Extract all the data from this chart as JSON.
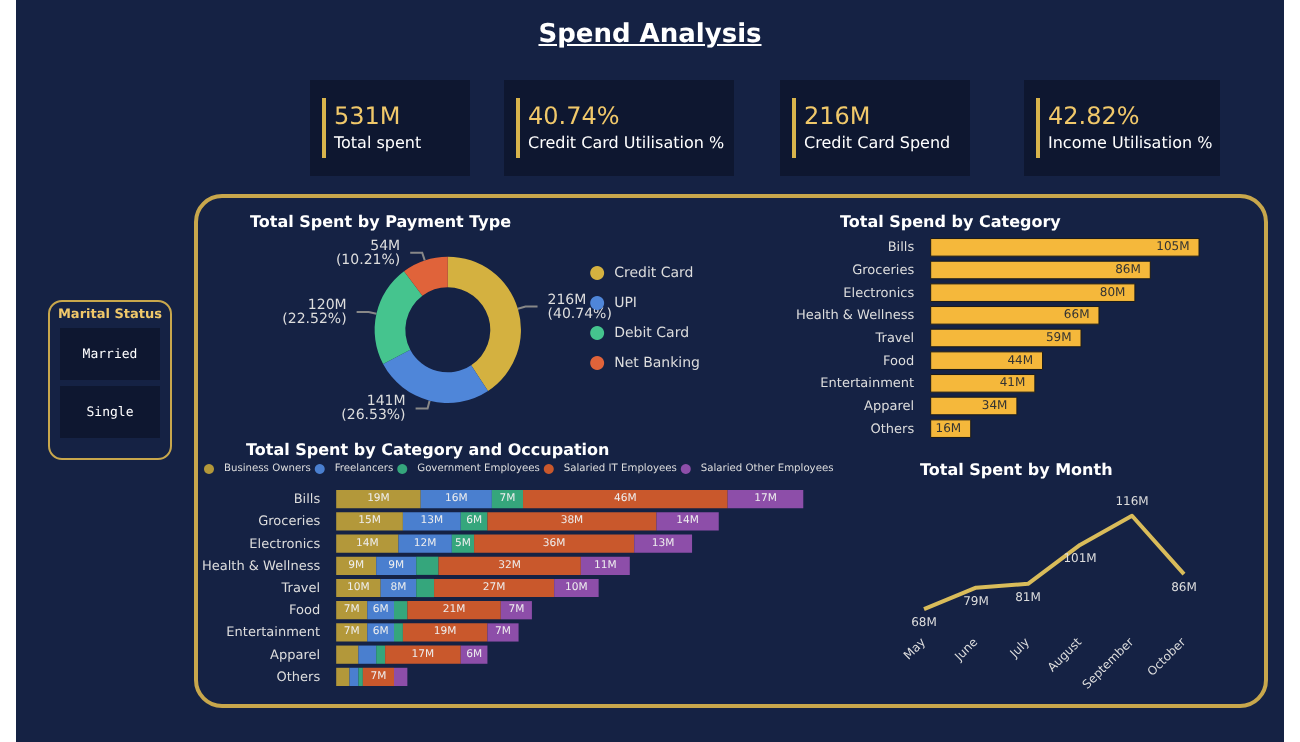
{
  "chart_data": [
    {
      "type": "other",
      "title": "Spend Analysis",
      "annotations": [
        "531M",
        "Total spent",
        "40.74%",
        "Credit Card Utilisation %",
        "216M",
        "Credit Card Spend",
        "42.82%",
        "Income Utilisation %"
      ]
    },
    {
      "type": "other",
      "title": "Marital Status",
      "annotations": [
        "Married",
        "Single"
      ]
    },
    {
      "type": "donut",
      "title": "Total Spent by Payment Type",
      "categories": [
        "Credit Card",
        "UPI",
        "Debit Card",
        "Net Banking"
      ],
      "values": [
        40.74,
        26.53,
        22.52,
        10.21
      ],
      "value_labels": [
        "216M (40.74%)",
        "141M (26.53%)",
        "120M (22.52%)",
        "54M (10.21%)"
      ],
      "colors": [
        "#d4b140",
        "#4f86d9",
        "#45c48e",
        "#e0633a"
      ],
      "legend": "right"
    },
    {
      "type": "bar",
      "orientation": "horizontal",
      "title": "Total Spend by Category",
      "categories": [
        "Bills",
        "Groceries",
        "Electronics",
        "Health & Wellness",
        "Travel",
        "Food",
        "Entertainment",
        "Apparel",
        "Others"
      ],
      "values": [
        105,
        86,
        80,
        66,
        59,
        44,
        41,
        34,
        16
      ],
      "value_labels": [
        "105M",
        "86M",
        "80M",
        "66M",
        "59M",
        "44M",
        "41M",
        "34M",
        "16M"
      ],
      "color": "#f5b83b"
    },
    {
      "type": "bar",
      "orientation": "horizontal",
      "stacked": true,
      "title": "Total Spent by Category and Occupation",
      "legend": "top",
      "categories": [
        "Bills",
        "Groceries",
        "Electronics",
        "Health & Wellness",
        "Travel",
        "Food",
        "Entertainment",
        "Apparel",
        "Others"
      ],
      "series": [
        {
          "name": "Business Owners",
          "color": "#b3983a",
          "values": [
            19,
            15,
            14,
            9,
            10,
            7,
            7,
            5,
            3
          ],
          "value_labels": [
            "19M",
            "15M",
            "14M",
            "9M",
            "10M",
            "7M",
            "7M",
            null,
            null
          ]
        },
        {
          "name": "Freelancers",
          "color": "#4a7fcf",
          "values": [
            16,
            13,
            12,
            9,
            8,
            6,
            6,
            4,
            2
          ],
          "value_labels": [
            "16M",
            "13M",
            "12M",
            "9M",
            "8M",
            "6M",
            "6M",
            null,
            null
          ]
        },
        {
          "name": "Government Employees",
          "color": "#35a67c",
          "values": [
            7,
            6,
            5,
            5,
            4,
            3,
            2,
            2,
            1
          ],
          "value_labels": [
            "7M",
            "6M",
            "5M",
            null,
            null,
            null,
            null,
            null,
            null
          ]
        },
        {
          "name": "Salaried IT Employees",
          "color": "#c9582c",
          "values": [
            46,
            38,
            36,
            32,
            27,
            21,
            19,
            17,
            7
          ],
          "value_labels": [
            "46M",
            "38M",
            "36M",
            "32M",
            "27M",
            "21M",
            "19M",
            "17M",
            "7M"
          ]
        },
        {
          "name": "Salaried Other Employees",
          "color": "#8d4ea9",
          "values": [
            17,
            14,
            13,
            11,
            10,
            7,
            7,
            6,
            3
          ],
          "value_labels": [
            "17M",
            "14M",
            "13M",
            "11M",
            "10M",
            "7M",
            "7M",
            "6M",
            null
          ]
        }
      ]
    },
    {
      "type": "line",
      "title": "Total Spent by Month",
      "categories": [
        "May",
        "June",
        "July",
        "August",
        "September",
        "October"
      ],
      "values": [
        68,
        79,
        81,
        101,
        116,
        86
      ],
      "value_labels": [
        "68M",
        "79M",
        "81M",
        "101M",
        "116M",
        "86M"
      ],
      "color": "#d9bc5a"
    }
  ]
}
